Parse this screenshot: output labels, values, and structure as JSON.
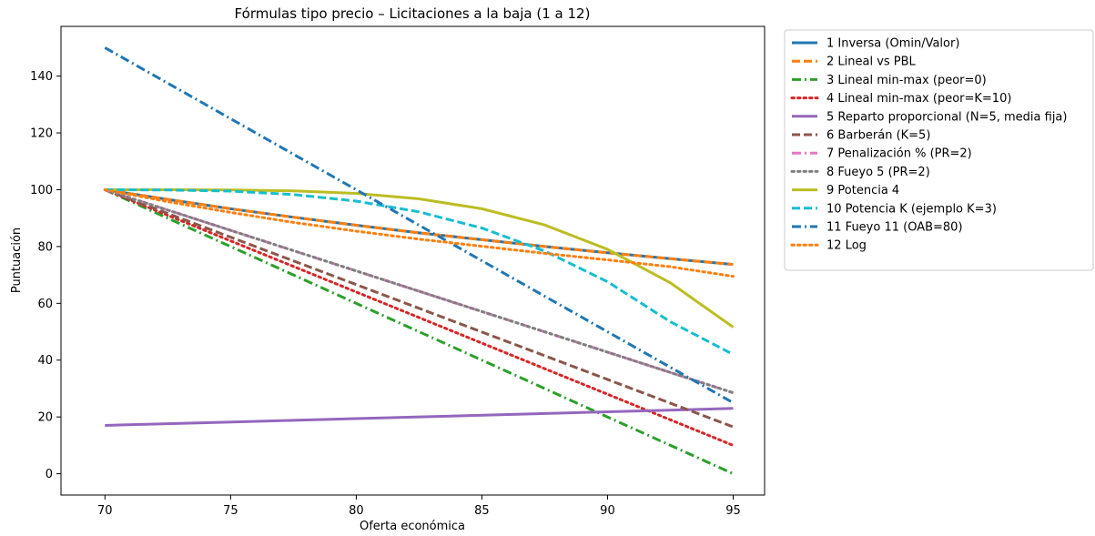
{
  "chart_data": {
    "type": "line",
    "title": "Fórmulas tipo precio – Licitaciones a la baja (1 a 12)",
    "xlabel": "Oferta económica",
    "ylabel": "Puntuación",
    "xlim": [
      68.25,
      96.25
    ],
    "ylim": [
      -7.5,
      157.5
    ],
    "xticks": [
      70,
      75,
      80,
      85,
      90,
      95
    ],
    "yticks": [
      0,
      20,
      40,
      60,
      80,
      100,
      120,
      140
    ],
    "grid": false,
    "legend_position": "outside-right-top",
    "series": [
      {
        "name": "1 Inversa (Omin/Valor)",
        "color": "#1f77b4",
        "dash": "solid",
        "x": [
          70,
          72.5,
          75,
          77.5,
          80,
          82.5,
          85,
          87.5,
          90,
          92.5,
          95
        ],
        "y": [
          100,
          96.6,
          93.3,
          90.3,
          87.5,
          84.8,
          82.4,
          80.0,
          77.8,
          75.7,
          73.7
        ]
      },
      {
        "name": "2 Lineal vs PBL",
        "color": "#ff7f0e",
        "dash": "dashed",
        "x": [
          70,
          72.5,
          75,
          77.5,
          80,
          82.5,
          85,
          87.5,
          90,
          92.5,
          95
        ],
        "y": [
          100,
          96.6,
          93.3,
          90.3,
          87.5,
          84.8,
          82.4,
          80.0,
          77.8,
          75.7,
          73.7
        ]
      },
      {
        "name": "3 Lineal min-max (peor=0)",
        "color": "#2ca02c",
        "dash": "dashdot",
        "x": [
          70,
          95
        ],
        "y": [
          100,
          0
        ]
      },
      {
        "name": "4 Lineal min-max (peor=K=10)",
        "color": "#d62728",
        "dash": "dotted",
        "x": [
          70,
          95
        ],
        "y": [
          100,
          10
        ]
      },
      {
        "name": "5 Reparto proporcional (N=5, media fija)",
        "color": "#9467bd",
        "dash": "solid",
        "x": [
          70,
          95
        ],
        "y": [
          17,
          23
        ]
      },
      {
        "name": "6 Barberán (K=5)",
        "color": "#8c564b",
        "dash": "dashed",
        "x": [
          70,
          95
        ],
        "y": [
          100,
          16.5
        ]
      },
      {
        "name": "7 Penalización % (PR=2)",
        "color": "#e377c2",
        "dash": "dashdot",
        "x": [
          70,
          95
        ],
        "y": [
          100,
          28.5
        ]
      },
      {
        "name": "8 Fueyo 5 (PR=2)",
        "color": "#7f7f7f",
        "dash": "dotted",
        "x": [
          70,
          95
        ],
        "y": [
          100,
          28.5
        ]
      },
      {
        "name": "9 Potencia 4",
        "color": "#bcbd22",
        "dash": "solid",
        "x": [
          70,
          72.5,
          75,
          77.5,
          80,
          82.5,
          85,
          87.5,
          90,
          92.5,
          95
        ],
        "y": [
          100,
          100.0,
          99.9,
          99.6,
          98.7,
          96.8,
          93.3,
          87.6,
          79.0,
          67.2,
          51.6
        ]
      },
      {
        "name": "10 Potencia K (ejemplo K=3)",
        "color": "#17becf",
        "dash": "dashed",
        "x": [
          70,
          72.5,
          75,
          77.5,
          80,
          82.5,
          85,
          87.5,
          90,
          92.5,
          95
        ],
        "y": [
          100,
          99.9,
          99.5,
          98.3,
          96.0,
          92.2,
          86.5,
          78.4,
          67.6,
          53.5,
          42.0
        ]
      },
      {
        "name": "11 Fueyo 11 (OAB=80)",
        "color": "#1f77b4",
        "dash": "dashdot",
        "x": [
          70,
          95
        ],
        "y": [
          150,
          25
        ]
      },
      {
        "name": "12 Log",
        "color": "#ff7f0e",
        "dash": "dotted",
        "x": [
          70,
          72.5,
          75,
          77.5,
          80,
          82.5,
          85,
          87.5,
          90,
          92.5,
          95
        ],
        "y": [
          100,
          95.8,
          92.0,
          88.5,
          85.4,
          82.6,
          80.1,
          77.6,
          75.3,
          72.9,
          69.5
        ]
      }
    ]
  }
}
